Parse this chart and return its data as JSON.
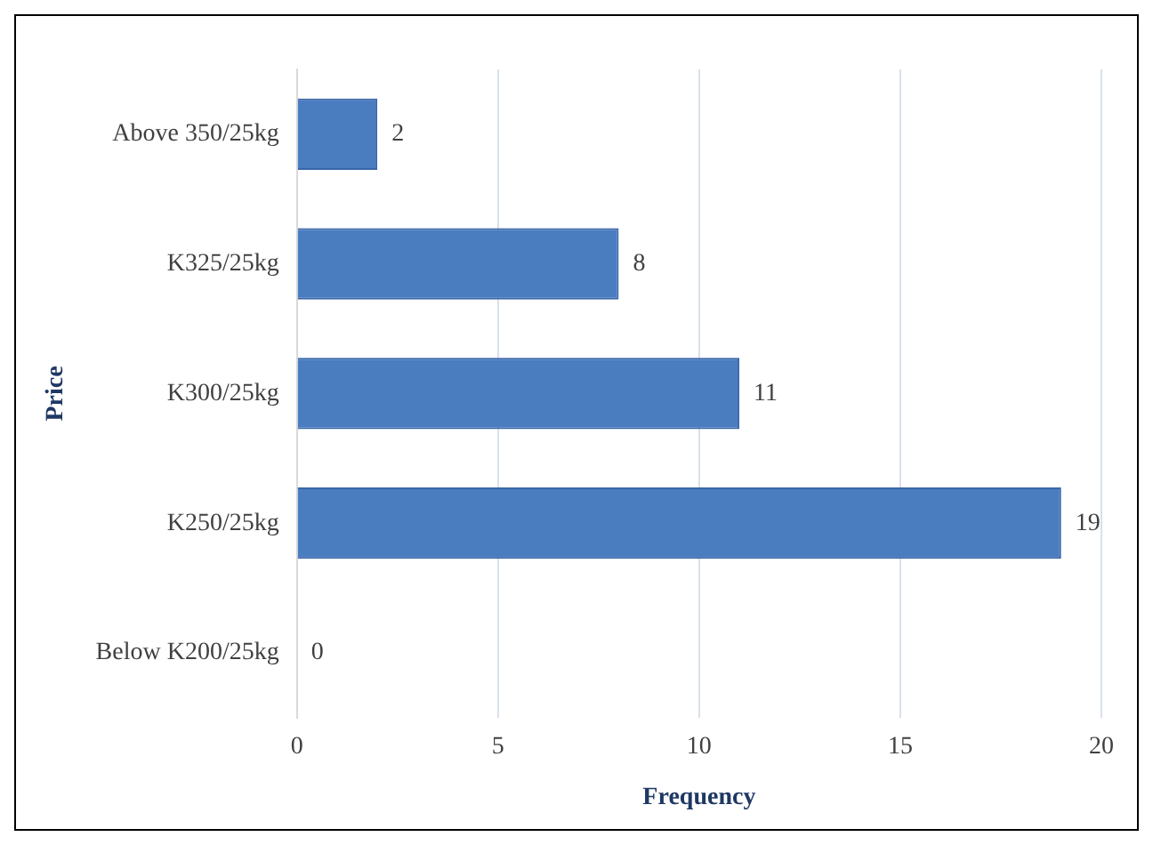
{
  "chart_data": {
    "type": "bar",
    "orientation": "horizontal",
    "categories": [
      "Above 350/25kg",
      "K325/25kg",
      "K300/25kg",
      "K250/25kg",
      "Below K200/25kg"
    ],
    "values": [
      2,
      8,
      11,
      19,
      0
    ],
    "color": "#4a7cc0",
    "xlim": [
      0,
      20
    ],
    "xticks": [
      0,
      5,
      10,
      15,
      20
    ],
    "xlabel": "Frequency",
    "ylabel": "Price",
    "grid": "x",
    "data_labels": true
  }
}
